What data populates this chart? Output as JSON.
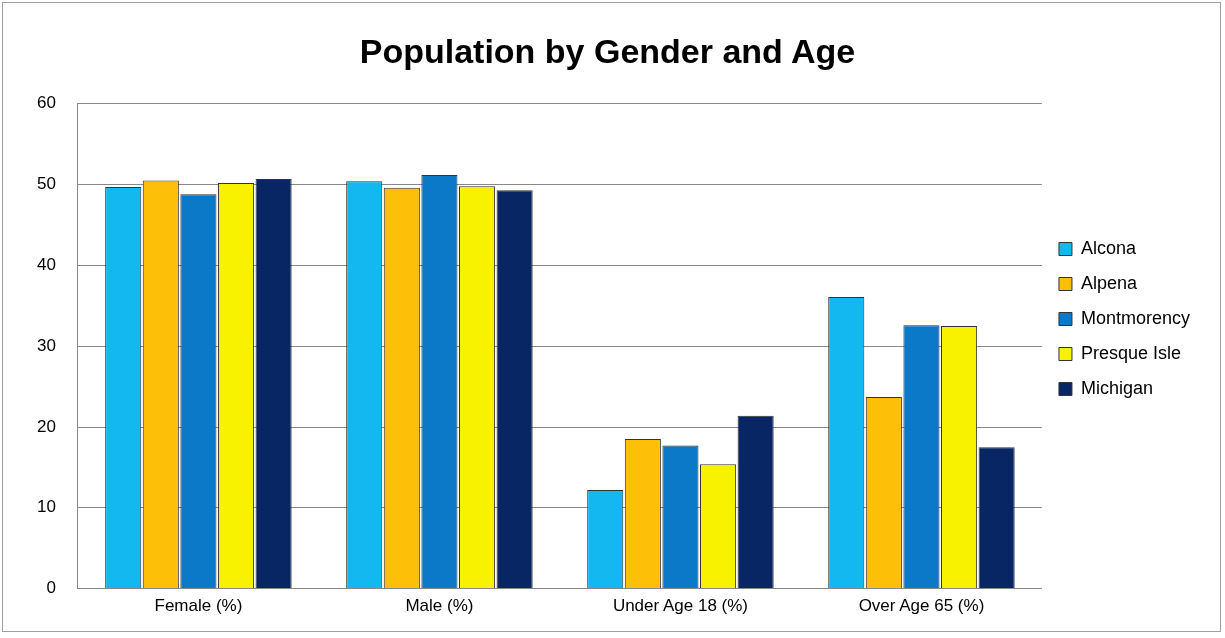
{
  "chart_data": {
    "type": "bar",
    "title": "Population by Gender and Age",
    "categories": [
      "Female (%)",
      "Male (%)",
      "Under Age 18 (%)",
      "Over Age 65 (%)"
    ],
    "series": [
      {
        "name": "Alcona",
        "color": "#12b8ef",
        "values": [
          49.7,
          50.4,
          12.2,
          36.1
        ]
      },
      {
        "name": "Alpena",
        "color": "#fdbf08",
        "values": [
          50.5,
          49.6,
          18.5,
          23.7
        ]
      },
      {
        "name": "Montmorency",
        "color": "#0b78c8",
        "values": [
          48.8,
          51.2,
          17.7,
          32.6
        ]
      },
      {
        "name": "Presque Isle",
        "color": "#f8f200",
        "values": [
          50.2,
          49.8,
          15.4,
          32.5
        ]
      },
      {
        "name": "Michigan",
        "color": "#082663",
        "values": [
          50.7,
          49.3,
          21.4,
          17.5
        ]
      }
    ],
    "ylim": [
      0,
      60
    ],
    "yticks": [
      0,
      10,
      20,
      30,
      40,
      50,
      60
    ],
    "grid": "y",
    "legend": "right"
  }
}
